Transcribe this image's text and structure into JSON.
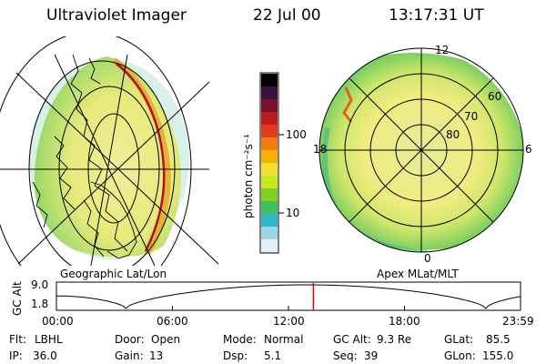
{
  "header": {
    "instrument": "Ultraviolet Imager",
    "date": "22 Jul 00",
    "time": "13:17:31 UT"
  },
  "left_panel": {
    "label": "Geographic Lat/Lon"
  },
  "right_panel": {
    "label": "Apex MLat/MLT",
    "mlt_labels": {
      "top": "12",
      "left": "18",
      "right": "6",
      "bottom": "0"
    },
    "lat_labels": [
      "60",
      "70",
      "80"
    ]
  },
  "colorbar": {
    "unit_label": "photon cm⁻²s⁻¹",
    "ticks": [
      "100",
      "10"
    ],
    "colors": [
      "#000000",
      "#3a1240",
      "#7a1030",
      "#c01a1a",
      "#e23a1a",
      "#f57a10",
      "#f8b000",
      "#f2e030",
      "#c8e820",
      "#7fd020",
      "#40c060",
      "#30b8c8",
      "#9ad8e8",
      "#e6f0f4"
    ]
  },
  "orbit": {
    "y_label": "GC Alt",
    "y_ticks": [
      "9.0",
      "1.8"
    ],
    "x_ticks": [
      "00:00",
      "06:00",
      "12:00",
      "18:00",
      "23:59"
    ],
    "current_hour": 13.29,
    "marker_color": "#e00000"
  },
  "footer": {
    "filter_label": "Flt:",
    "filter_value": "LBHL",
    "ip_label": "IP:",
    "ip_value": "36.0",
    "door_label": "Door:",
    "door_value": "Open",
    "gain_label": "Gain:",
    "gain_value": "13",
    "mode_label": "Mode:",
    "mode_value": "Normal",
    "dsp_label": "Dsp:",
    "dsp_value": "5.1",
    "gcalt_label": "GC Alt:",
    "gcalt_value": "9.3 Re",
    "seq_label": "Seq:",
    "seq_value": "39",
    "glat_label": "GLat:",
    "glat_value": "85.5",
    "glon_label": "GLon:",
    "glon_value": "155.0"
  }
}
